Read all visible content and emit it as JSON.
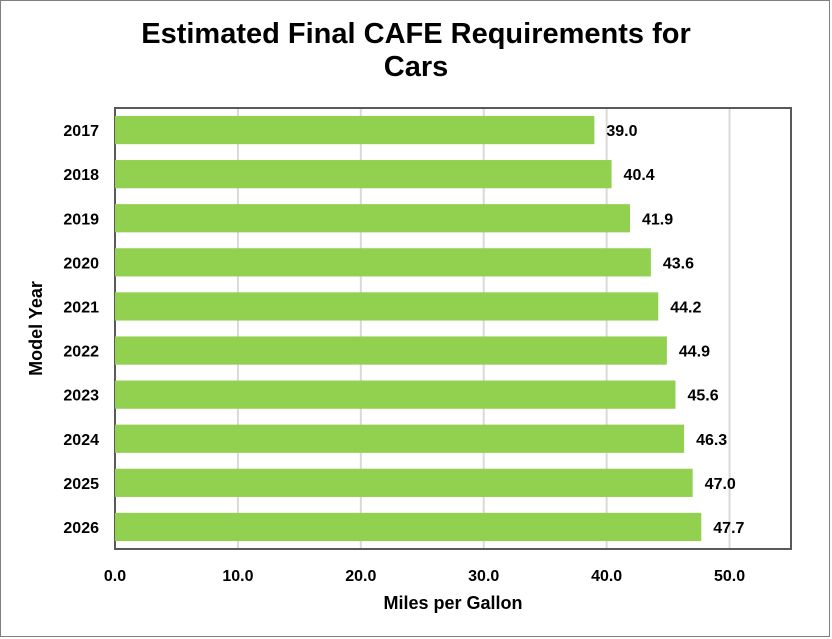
{
  "chart_data": {
    "type": "bar",
    "orientation": "horizontal",
    "title": "Estimated Final CAFE Requirements for\nCars",
    "xlabel": "Miles per Gallon",
    "ylabel": "Model Year",
    "categories": [
      "2017",
      "2018",
      "2019",
      "2020",
      "2021",
      "2022",
      "2023",
      "2024",
      "2025",
      "2026"
    ],
    "values": [
      39.0,
      40.4,
      41.9,
      43.6,
      44.2,
      44.9,
      45.6,
      46.3,
      47.0,
      47.7
    ],
    "value_labels": [
      "39.0",
      "40.4",
      "41.9",
      "43.6",
      "44.2",
      "44.9",
      "45.6",
      "46.3",
      "47.0",
      "47.7"
    ],
    "xlim": [
      0,
      55
    ],
    "x_ticks": [
      0,
      10,
      20,
      30,
      40,
      50
    ],
    "x_tick_labels": [
      "0.0",
      "10.0",
      "20.0",
      "30.0",
      "40.0",
      "50.0"
    ],
    "grid": "vertical",
    "legend": "none",
    "colors": {
      "bar": "#92d050",
      "grid": "#d9d9d9",
      "plot_border": "#595959"
    }
  }
}
